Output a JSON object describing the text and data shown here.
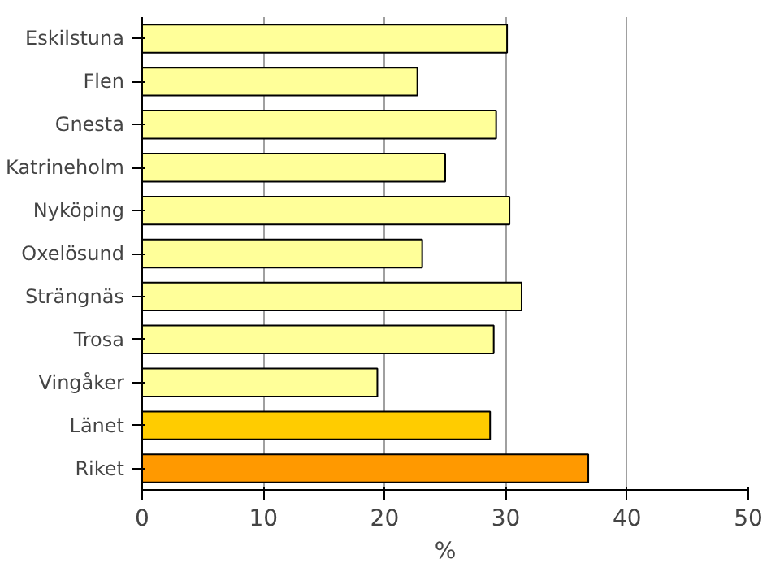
{
  "chart_data": {
    "type": "bar",
    "orientation": "horizontal",
    "xlabel": "%",
    "categories": [
      "Eskilstuna",
      "Flen",
      "Gnesta",
      "Katrineholm",
      "Nyköping",
      "Oxelösund",
      "Strängnäs",
      "Trosa",
      "Vingåker",
      "Länet",
      "Riket"
    ],
    "values": [
      30.1,
      22.7,
      29.2,
      25.0,
      30.3,
      23.1,
      31.3,
      29.0,
      19.4,
      28.7,
      36.8
    ],
    "colors": [
      "#ffff99",
      "#ffff99",
      "#ffff99",
      "#ffff99",
      "#ffff99",
      "#ffff99",
      "#ffff99",
      "#ffff99",
      "#ffff99",
      "#ffcc00",
      "#ff9900"
    ],
    "xlim": [
      0,
      50
    ],
    "xticks": [
      0,
      10,
      20,
      30,
      40,
      50
    ],
    "grid": "x"
  }
}
